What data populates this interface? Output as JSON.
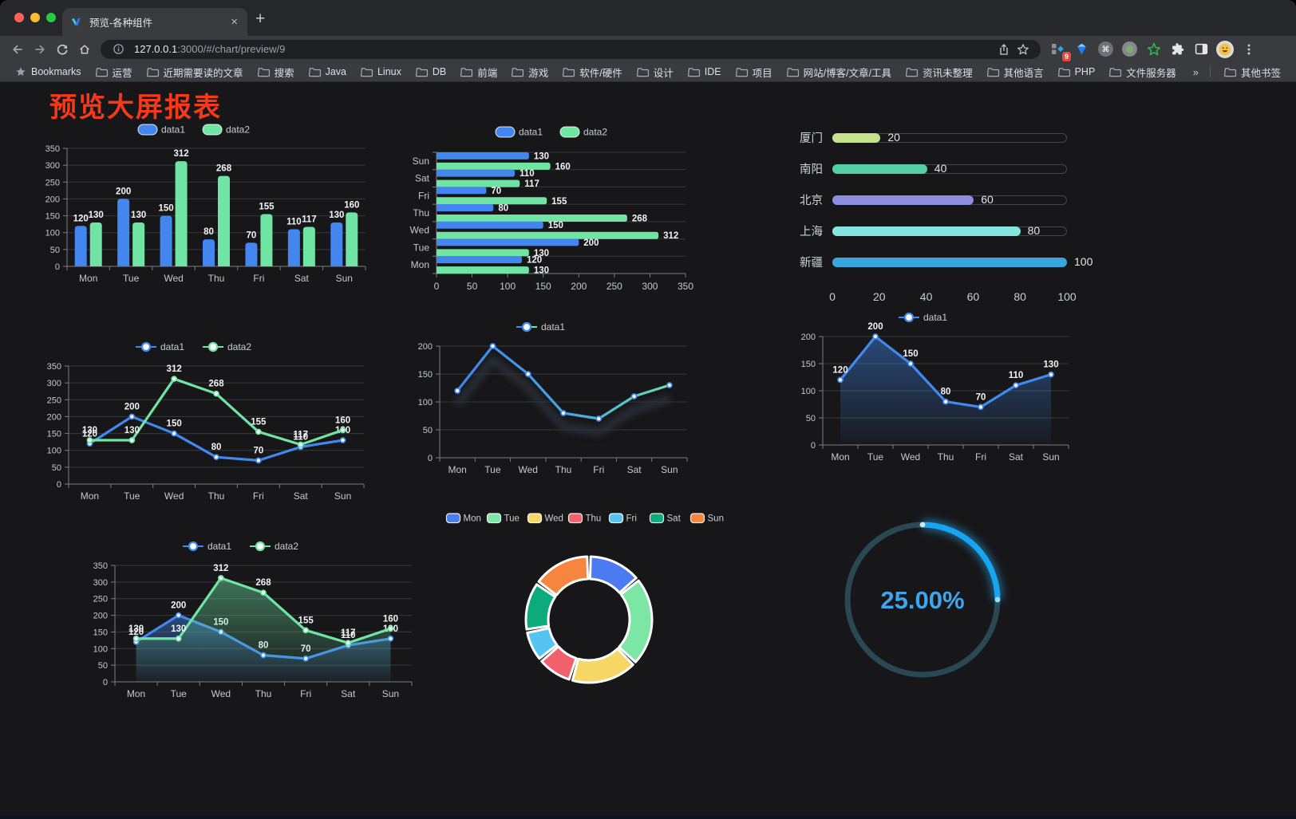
{
  "browser": {
    "tab_title": "预览-各种组件",
    "tab_close": "×",
    "new_tab": "+",
    "url_host": "127.0.0.1",
    "url_path": ":3000/#/chart/preview/9",
    "bookmarks_label": "Bookmarks",
    "bookmark_folders": [
      "运营",
      "近期需要读的文章",
      "搜索",
      "Java",
      "Linux",
      "DB",
      "前端",
      "游戏",
      "软件/硬件",
      "设计",
      "IDE",
      "项目",
      "网站/博客/文章/工具",
      "资讯未整理",
      "其他语言",
      "PHP",
      "文件服务器"
    ],
    "bookmarks_overflow": "»",
    "other_bookmarks_label": "其他书签",
    "extension_badge_count": "9"
  },
  "page": {
    "title": "预览大屏报表",
    "title_color": "#f6391b"
  },
  "chart_data": [
    {
      "id": "bar-vertical",
      "type": "bar",
      "categories": [
        "Mon",
        "Tue",
        "Wed",
        "Thu",
        "Fri",
        "Sat",
        "Sun"
      ],
      "series": [
        {
          "name": "data1",
          "color": "#4486f0",
          "values": [
            120,
            200,
            150,
            80,
            70,
            110,
            130
          ]
        },
        {
          "name": "data2",
          "color": "#70e4a3",
          "values": [
            130,
            130,
            312,
            268,
            155,
            117,
            160
          ]
        }
      ],
      "ylim": [
        0,
        350
      ],
      "yticks": [
        0,
        50,
        100,
        150,
        200,
        250,
        300,
        350
      ],
      "legend": [
        "data1",
        "data2"
      ],
      "legend_position": "top",
      "grid": true
    },
    {
      "id": "bar-horizontal",
      "type": "bar",
      "orientation": "horizontal",
      "categories": [
        "Mon",
        "Tue",
        "Wed",
        "Thu",
        "Fri",
        "Sat",
        "Sun"
      ],
      "categories_top_to_bottom": [
        "Sun",
        "Sat",
        "Fri",
        "Thu",
        "Wed",
        "Tue",
        "Mon"
      ],
      "series": [
        {
          "name": "data1",
          "color": "#4486f0",
          "values": [
            120,
            200,
            150,
            80,
            70,
            110,
            130
          ]
        },
        {
          "name": "data2",
          "color": "#70e4a3",
          "values": [
            130,
            130,
            312,
            268,
            155,
            117,
            160
          ]
        }
      ],
      "xlim": [
        0,
        350
      ],
      "xticks": [
        0,
        50,
        100,
        150,
        200,
        250,
        300,
        350
      ],
      "legend": [
        "data1",
        "data2"
      ],
      "legend_position": "top",
      "grid": true
    },
    {
      "id": "city-progress",
      "type": "bar",
      "variant": "progress",
      "rows": [
        {
          "label": "厦门",
          "value": 20,
          "color": "#c5e38b"
        },
        {
          "label": "南阳",
          "value": 40,
          "color": "#53d0a2"
        },
        {
          "label": "北京",
          "value": 60,
          "color": "#8c8ce0"
        },
        {
          "label": "上海",
          "value": 80,
          "color": "#87e5e0"
        },
        {
          "label": "新疆",
          "value": 100,
          "color": "#3aa4dd"
        }
      ],
      "xlim": [
        0,
        100
      ],
      "xticks": [
        0,
        20,
        40,
        60,
        80,
        100
      ]
    },
    {
      "id": "line-two-series",
      "type": "line",
      "categories": [
        "Mon",
        "Tue",
        "Wed",
        "Thu",
        "Fri",
        "Sat",
        "Sun"
      ],
      "series": [
        {
          "name": "data1",
          "color": "#4189ee",
          "values": [
            120,
            200,
            150,
            80,
            70,
            110,
            130
          ]
        },
        {
          "name": "data2",
          "color": "#70e4a3",
          "values": [
            130,
            130,
            312,
            268,
            155,
            117,
            160
          ]
        }
      ],
      "ylim": [
        0,
        350
      ],
      "yticks": [
        0,
        50,
        100,
        150,
        200,
        250,
        300,
        350
      ],
      "legend": [
        "data1",
        "data2"
      ],
      "show_labels": true
    },
    {
      "id": "line-gradient",
      "type": "line",
      "categories": [
        "Mon",
        "Tue",
        "Wed",
        "Thu",
        "Fri",
        "Sat",
        "Sun"
      ],
      "series": [
        {
          "name": "data1",
          "color_start": "#3f7ef0",
          "color_end": "#6ee7a6",
          "values": [
            120,
            200,
            150,
            80,
            70,
            110,
            130
          ]
        }
      ],
      "ylim": [
        0,
        200
      ],
      "yticks": [
        0,
        50,
        100,
        150,
        200
      ],
      "legend": [
        "data1"
      ],
      "show_labels": false
    },
    {
      "id": "line-area",
      "type": "area",
      "categories": [
        "Mon",
        "Tue",
        "Wed",
        "Thu",
        "Fri",
        "Sat",
        "Sun"
      ],
      "series": [
        {
          "name": "data1",
          "color": "#4189ee",
          "values": [
            120,
            200,
            150,
            80,
            70,
            110,
            130
          ],
          "area": true
        }
      ],
      "ylim": [
        0,
        200
      ],
      "yticks": [
        0,
        50,
        100,
        150,
        200
      ],
      "legend": [
        "data1"
      ],
      "show_labels": true
    },
    {
      "id": "line-two-area",
      "type": "area",
      "categories": [
        "Mon",
        "Tue",
        "Wed",
        "Thu",
        "Fri",
        "Sat",
        "Sun"
      ],
      "series": [
        {
          "name": "data1",
          "color": "#4189ee",
          "values": [
            120,
            200,
            150,
            80,
            70,
            110,
            130
          ],
          "area": true
        },
        {
          "name": "data2",
          "color": "#70e4a3",
          "values": [
            130,
            130,
            312,
            268,
            155,
            117,
            160
          ],
          "area": true
        }
      ],
      "ylim": [
        0,
        350
      ],
      "yticks": [
        0,
        50,
        100,
        150,
        200,
        250,
        300,
        350
      ],
      "legend": [
        "data1",
        "data2"
      ],
      "show_labels": true
    },
    {
      "id": "week-donut",
      "type": "pie",
      "donut": true,
      "categories": [
        "Mon",
        "Tue",
        "Wed",
        "Thu",
        "Fri",
        "Sat",
        "Sun"
      ],
      "values": [
        120,
        200,
        150,
        80,
        70,
        110,
        130
      ],
      "colors": [
        "#4a7bf0",
        "#7ce6a4",
        "#f7d764",
        "#f2606d",
        "#55c4f2",
        "#0cab7c",
        "#f5853f"
      ],
      "legend_position": "top"
    },
    {
      "id": "percent-gauge",
      "type": "gauge",
      "value": 25,
      "display": "25.00%",
      "color": "#17a5f1",
      "track_color": "#2a4854",
      "text_color": "#3fa5ee"
    }
  ]
}
